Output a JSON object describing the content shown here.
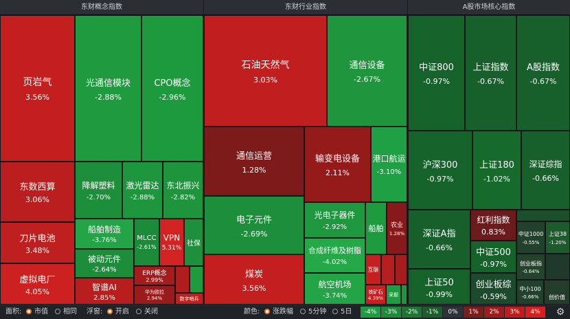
{
  "panels": {
    "concept_title": "东财概念指数",
    "industry_title": "东财行业指数",
    "core_title": "A股市场核心指数"
  },
  "concept": [
    {
      "name": "页岩气",
      "pct": "3.56%"
    },
    {
      "name": "光通信模块",
      "pct": "-2.88%"
    },
    {
      "name": "CPO概念",
      "pct": "-2.96%"
    },
    {
      "name": "东数西算",
      "pct": "3.06%"
    },
    {
      "name": "刀片电池",
      "pct": "3.48%"
    },
    {
      "name": "虚拟电厂",
      "pct": "4.05%"
    },
    {
      "name": "降解塑料",
      "pct": "-2.70%"
    },
    {
      "name": "激光雷达",
      "pct": "-2.88%"
    },
    {
      "name": "东北振兴",
      "pct": "-2.82%"
    },
    {
      "name": "船舶制造",
      "pct": "-3.76%"
    },
    {
      "name": "被动元件",
      "pct": "-2.64%"
    },
    {
      "name": "智谱AI",
      "pct": "2.85%"
    },
    {
      "name": "MLCC",
      "pct": "-2.61%"
    },
    {
      "name": "VPN",
      "pct": "5.31%"
    },
    {
      "name": "社保",
      "pct": ""
    },
    {
      "name": "ERP概念",
      "pct": "2.99%"
    },
    {
      "name": "华为欧拉",
      "pct": "2.94%"
    },
    {
      "name": "数字哨兵",
      "pct": ""
    }
  ],
  "industry": [
    {
      "name": "石油天然气",
      "pct": "3.03%"
    },
    {
      "name": "通信设备",
      "pct": "-2.67%"
    },
    {
      "name": "通信运营",
      "pct": "1.28%"
    },
    {
      "name": "输变电设备",
      "pct": "2.11%"
    },
    {
      "name": "港口航运",
      "pct": "-3.10%"
    },
    {
      "name": "电子元件",
      "pct": "-2.69%"
    },
    {
      "name": "煤炭",
      "pct": "3.56%"
    },
    {
      "name": "光电子器件",
      "pct": "-2.92%"
    },
    {
      "name": "船舶",
      "pct": ""
    },
    {
      "name": "农业",
      "pct": "1.28%"
    },
    {
      "name": "合成纤维及树脂",
      "pct": "-4.02%"
    },
    {
      "name": "互联",
      "pct": ""
    },
    {
      "name": "航空机场",
      "pct": "-3.74%"
    },
    {
      "name": "铁矿石",
      "pct": "4.39%"
    },
    {
      "name": "采掘",
      "pct": ""
    }
  ],
  "core": [
    {
      "name": "中证800",
      "pct": "-0.97%"
    },
    {
      "name": "上证指数",
      "pct": "-0.67%"
    },
    {
      "name": "A股指数",
      "pct": "-0.67%"
    },
    {
      "name": "沪深300",
      "pct": "-0.97%"
    },
    {
      "name": "上证180",
      "pct": "-1.02%"
    },
    {
      "name": "深证综指",
      "pct": "-0.66%"
    },
    {
      "name": "深证A指",
      "pct": "-0.66%"
    },
    {
      "name": "红利指数",
      "pct": "0.83%"
    },
    {
      "name": "中证1000",
      "pct": "-0.55%"
    },
    {
      "name": "上证38",
      "pct": "-1.20%"
    },
    {
      "name": "中证500",
      "pct": "-0.97%"
    },
    {
      "name": "创业板指",
      "pct": "-0.64%"
    },
    {
      "name": "上证50",
      "pct": "-0.99%"
    },
    {
      "name": "创业板综",
      "pct": "-0.59%"
    },
    {
      "name": "中小100",
      "pct": "-0.66%"
    },
    {
      "name": "创价值",
      "pct": ""
    }
  ],
  "bottom": {
    "area_label": "面积:",
    "area_opt1": "市值",
    "area_opt2": "相同",
    "float_label": "浮窗:",
    "float_opt1": "开启",
    "float_opt2": "关闭",
    "color_label": "颜色:",
    "color_opt1": "涨跌幅",
    "color_opt2": "5分钟",
    "color_opt3": "5日",
    "legend": [
      "-4%",
      "-3%",
      "-2%",
      "-1%",
      "0%",
      "1%",
      "2%",
      "3%",
      "4%"
    ],
    "legend_colors": [
      "#1e9c41",
      "#1f8a3a",
      "#1d7533",
      "#1c5d2d",
      "#2d323a",
      "#7a1d1d",
      "#9e1c1c",
      "#bf1d1d",
      "#d81f1f"
    ]
  },
  "colors": {
    "up_strong": "#c41f1f",
    "up_mid": "#a91c1c",
    "up_dark": "#8d1a1a",
    "down_strong": "#1c9a3e",
    "down_mid": "#198535",
    "down_dark": "#15642a",
    "accent": "#f07a1c"
  }
}
